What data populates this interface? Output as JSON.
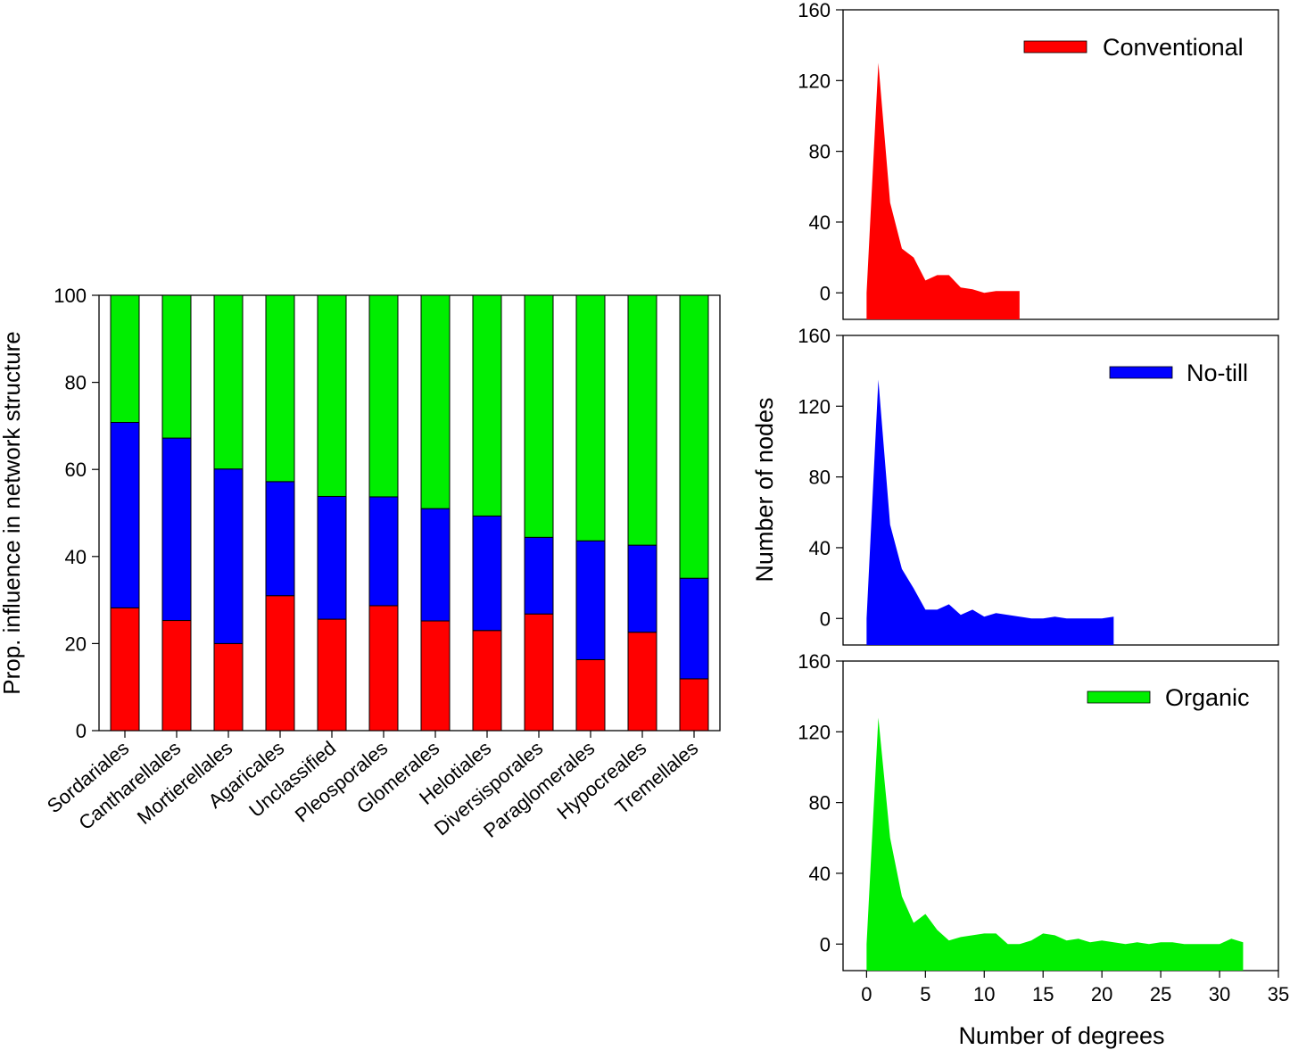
{
  "chart_data": [
    {
      "type": "bar",
      "stacked": true,
      "ylabel": "Prop. influence in network structure",
      "xlabel": "",
      "ylim": [
        0,
        100
      ],
      "yticks": [
        "0",
        "20",
        "40",
        "60",
        "80",
        "100"
      ],
      "categories": [
        "Sordariales",
        "Cantharellales",
        "Mortierellales",
        "Agaricales",
        "Unclassified",
        "Pleosporales",
        "Glomerales",
        "Helotiales",
        "Diversisporales",
        "Paraglomerales",
        "Hypocreales",
        "Tremellales"
      ],
      "series": [
        {
          "name": "Conventional",
          "color": "#ff0000",
          "values": [
            28.2,
            25.3,
            20.0,
            31.0,
            25.6,
            28.7,
            25.2,
            23.0,
            26.8,
            16.3,
            22.6,
            11.9
          ]
        },
        {
          "name": "No-till",
          "color": "#0000ff",
          "values": [
            42.6,
            41.9,
            40.1,
            26.2,
            28.2,
            25.0,
            25.8,
            26.3,
            17.6,
            27.3,
            20.0,
            23.1
          ]
        },
        {
          "name": "Organic",
          "color": "#00ee00",
          "values": [
            29.2,
            32.8,
            39.9,
            42.8,
            46.2,
            46.3,
            49.0,
            50.7,
            55.6,
            56.4,
            57.4,
            65.0
          ]
        }
      ]
    },
    {
      "type": "area",
      "series_name": "Conventional",
      "legend_label": "Conventional",
      "color": "#ff0000",
      "ylim": [
        -15,
        160
      ],
      "yticks": [
        "0",
        "40",
        "80",
        "120",
        "160"
      ],
      "x": [
        0,
        0,
        1,
        2,
        3,
        4,
        5,
        6,
        7,
        8,
        9,
        10,
        11,
        12,
        13
      ],
      "y": [
        0,
        0,
        130,
        51,
        25,
        20,
        7,
        10,
        10,
        3,
        2,
        0,
        1,
        1,
        1
      ]
    },
    {
      "type": "area",
      "series_name": "No-till",
      "legend_label": "No-till",
      "color": "#0000ff",
      "ylim": [
        -15,
        160
      ],
      "yticks": [
        "0",
        "40",
        "80",
        "120",
        "160"
      ],
      "ylabel": "Number of nodes",
      "x": [
        0,
        0,
        1,
        2,
        3,
        4,
        5,
        6,
        7,
        8,
        9,
        10,
        11,
        12,
        13,
        14,
        15,
        16,
        17,
        18,
        19,
        20,
        21
      ],
      "y": [
        0,
        0,
        135,
        53,
        28,
        17,
        5,
        5,
        8,
        2,
        5,
        1,
        3,
        2,
        1,
        0,
        0,
        1,
        0,
        0,
        0,
        0,
        1
      ]
    },
    {
      "type": "area",
      "series_name": "Organic",
      "legend_label": "Organic",
      "color": "#00ee00",
      "ylim": [
        -15,
        160
      ],
      "yticks": [
        "0",
        "40",
        "80",
        "120",
        "160"
      ],
      "xlabel": "Number of degrees",
      "xlim": [
        -2,
        35
      ],
      "xticks": [
        "0",
        "5",
        "10",
        "15",
        "20",
        "25",
        "30",
        "35"
      ],
      "x": [
        0,
        0,
        1,
        2,
        3,
        4,
        5,
        6,
        7,
        8,
        9,
        10,
        11,
        12,
        13,
        14,
        15,
        16,
        17,
        18,
        19,
        20,
        21,
        22,
        23,
        24,
        25,
        26,
        27,
        28,
        29,
        30,
        31,
        32
      ],
      "y": [
        0,
        0,
        128,
        60,
        27,
        12,
        17,
        8,
        2,
        4,
        5,
        6,
        6,
        0,
        0,
        2,
        6,
        5,
        2,
        3,
        1,
        2,
        1,
        0,
        1,
        0,
        1,
        1,
        0,
        0,
        0,
        0,
        3,
        1
      ]
    }
  ]
}
